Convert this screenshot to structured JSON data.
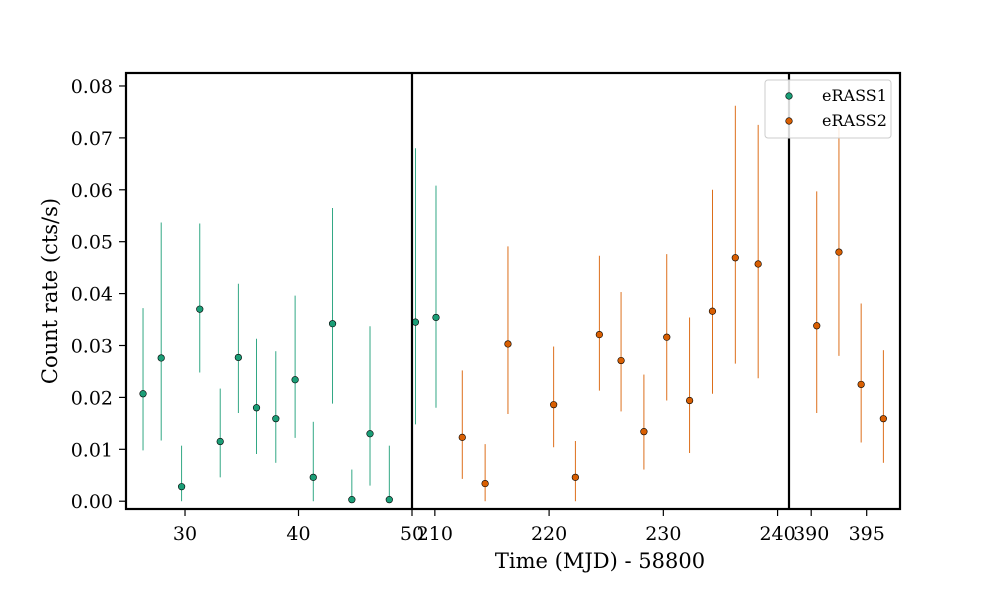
{
  "chart_data": {
    "type": "scatter",
    "title": "",
    "xlabel": "Time (MJD) - 58800",
    "ylabel": "Count rate (cts/s)",
    "ylim": [
      -0.0015,
      0.0825
    ],
    "yticks": [
      0.0,
      0.01,
      0.02,
      0.03,
      0.04,
      0.05,
      0.06,
      0.07,
      0.08
    ],
    "ytick_labels": [
      "0.00",
      "0.01",
      "0.02",
      "0.03",
      "0.04",
      "0.05",
      "0.06",
      "0.07",
      "0.08"
    ],
    "grid": false,
    "legend": {
      "placement": "top-right"
    },
    "colors": {
      "eRASS1": "#1b9e77",
      "eRASS2": "#d95f02"
    },
    "panels": [
      {
        "xlim": [
          24.8,
          50
        ],
        "xticks": [
          30,
          40,
          50
        ],
        "xtick_labels": [
          "30",
          "40",
          "50"
        ],
        "points": [
          {
            "series": "eRASS1",
            "x": 26.3,
            "y": 0.0207,
            "ylo": 0.0098,
            "yhi": 0.0372
          },
          {
            "series": "eRASS1",
            "x": 27.9,
            "y": 0.0276,
            "ylo": 0.0117,
            "yhi": 0.0537
          },
          {
            "series": "eRASS1",
            "x": 29.7,
            "y": 0.0028,
            "ylo": 0.0,
            "yhi": 0.0107
          },
          {
            "series": "eRASS1",
            "x": 31.3,
            "y": 0.037,
            "ylo": 0.0248,
            "yhi": 0.0535
          },
          {
            "series": "eRASS1",
            "x": 33.1,
            "y": 0.0115,
            "ylo": 0.0046,
            "yhi": 0.0217
          },
          {
            "series": "eRASS1",
            "x": 34.7,
            "y": 0.0277,
            "ylo": 0.017,
            "yhi": 0.0419
          },
          {
            "series": "eRASS1",
            "x": 36.3,
            "y": 0.018,
            "ylo": 0.0091,
            "yhi": 0.0313
          },
          {
            "series": "eRASS1",
            "x": 38.0,
            "y": 0.0159,
            "ylo": 0.0074,
            "yhi": 0.0289
          },
          {
            "series": "eRASS1",
            "x": 39.7,
            "y": 0.0234,
            "ylo": 0.0122,
            "yhi": 0.0396
          },
          {
            "series": "eRASS1",
            "x": 41.3,
            "y": 0.0046,
            "ylo": 0.0,
            "yhi": 0.0153
          },
          {
            "series": "eRASS1",
            "x": 43.0,
            "y": 0.0342,
            "ylo": 0.0188,
            "yhi": 0.0565
          },
          {
            "series": "eRASS1",
            "x": 44.7,
            "y": 0.0003,
            "ylo": 0.0,
            "yhi": 0.0061
          },
          {
            "series": "eRASS1",
            "x": 46.3,
            "y": 0.013,
            "ylo": 0.003,
            "yhi": 0.0337
          },
          {
            "series": "eRASS1",
            "x": 48.0,
            "y": 0.0003,
            "ylo": 0.0,
            "yhi": 0.0107
          }
        ]
      },
      {
        "xlim": [
          208,
          241
        ],
        "xticks": [
          210,
          220,
          230,
          240
        ],
        "xtick_labels": [
          "210",
          "220",
          "230",
          "240"
        ],
        "points": [
          {
            "series": "eRASS1",
            "x": 208.3,
            "y": 0.0345,
            "ylo": 0.0148,
            "yhi": 0.068
          },
          {
            "series": "eRASS1",
            "x": 210.1,
            "y": 0.0354,
            "ylo": 0.018,
            "yhi": 0.0608
          },
          {
            "series": "eRASS2",
            "x": 212.4,
            "y": 0.0123,
            "ylo": 0.0043,
            "yhi": 0.0252
          },
          {
            "series": "eRASS2",
            "x": 214.4,
            "y": 0.0034,
            "ylo": 0.0,
            "yhi": 0.011
          },
          {
            "series": "eRASS2",
            "x": 216.4,
            "y": 0.0303,
            "ylo": 0.0168,
            "yhi": 0.0491
          },
          {
            "series": "eRASS2",
            "x": 220.4,
            "y": 0.0186,
            "ylo": 0.0104,
            "yhi": 0.0298
          },
          {
            "series": "eRASS2",
            "x": 222.3,
            "y": 0.0046,
            "ylo": 0.0,
            "yhi": 0.0116
          },
          {
            "series": "eRASS2",
            "x": 224.4,
            "y": 0.0321,
            "ylo": 0.0213,
            "yhi": 0.0473
          },
          {
            "series": "eRASS2",
            "x": 226.3,
            "y": 0.0271,
            "ylo": 0.0173,
            "yhi": 0.0403
          },
          {
            "series": "eRASS2",
            "x": 228.3,
            "y": 0.0134,
            "ylo": 0.0061,
            "yhi": 0.0244
          },
          {
            "series": "eRASS2",
            "x": 230.3,
            "y": 0.0316,
            "ylo": 0.0194,
            "yhi": 0.0476
          },
          {
            "series": "eRASS2",
            "x": 232.3,
            "y": 0.0194,
            "ylo": 0.0093,
            "yhi": 0.0354
          },
          {
            "series": "eRASS2",
            "x": 234.3,
            "y": 0.0366,
            "ylo": 0.0207,
            "yhi": 0.06
          },
          {
            "series": "eRASS2",
            "x": 236.3,
            "y": 0.0469,
            "ylo": 0.0265,
            "yhi": 0.0762
          },
          {
            "series": "eRASS2",
            "x": 238.3,
            "y": 0.0457,
            "ylo": 0.0237,
            "yhi": 0.0725
          }
        ]
      },
      {
        "xlim": [
          388,
          398
        ],
        "xticks": [
          390,
          395
        ],
        "xtick_labels": [
          "390",
          "395"
        ],
        "points": [
          {
            "series": "eRASS2",
            "x": 390.5,
            "y": 0.0338,
            "ylo": 0.017,
            "yhi": 0.0597
          },
          {
            "series": "eRASS2",
            "x": 392.5,
            "y": 0.048,
            "ylo": 0.028,
            "yhi": 0.0722
          },
          {
            "series": "eRASS2",
            "x": 394.5,
            "y": 0.0225,
            "ylo": 0.0113,
            "yhi": 0.0381
          },
          {
            "series": "eRASS2",
            "x": 396.5,
            "y": 0.0159,
            "ylo": 0.0074,
            "yhi": 0.0291
          }
        ]
      }
    ],
    "series": [
      {
        "name": "eRASS1"
      },
      {
        "name": "eRASS2"
      }
    ]
  }
}
